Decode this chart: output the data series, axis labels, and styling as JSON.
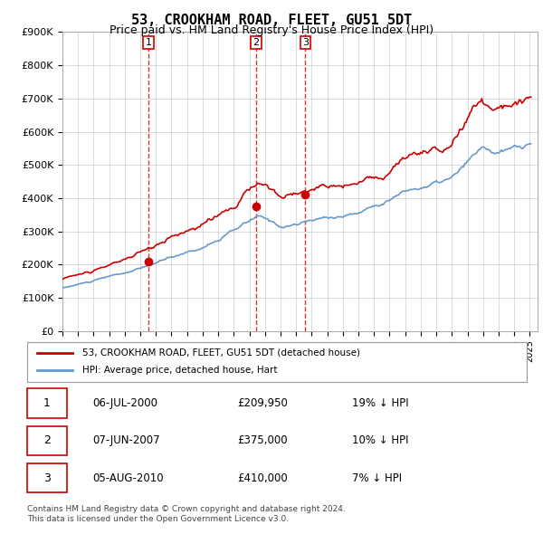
{
  "title": "53, CROOKHAM ROAD, FLEET, GU51 5DT",
  "subtitle": "Price paid vs. HM Land Registry's House Price Index (HPI)",
  "legend_house": "53, CROOKHAM ROAD, FLEET, GU51 5DT (detached house)",
  "legend_hpi": "HPI: Average price, detached house, Hart",
  "footer1": "Contains HM Land Registry data © Crown copyright and database right 2024.",
  "footer2": "This data is licensed under the Open Government Licence v3.0.",
  "transactions": [
    {
      "num": 1,
      "date": "06-JUL-2000",
      "price": 209950,
      "pct": "19%",
      "dir": "↓"
    },
    {
      "num": 2,
      "date": "07-JUN-2007",
      "price": 375000,
      "pct": "10%",
      "dir": "↓"
    },
    {
      "num": 3,
      "date": "05-AUG-2010",
      "price": 410000,
      "pct": "7%",
      "dir": "↓"
    }
  ],
  "transaction_years": [
    2000.52,
    2007.44,
    2010.59
  ],
  "transaction_prices": [
    209950,
    375000,
    410000
  ],
  "ylim": [
    0,
    900000
  ],
  "yticks": [
    0,
    100000,
    200000,
    300000,
    400000,
    500000,
    600000,
    700000,
    800000,
    900000
  ],
  "ytick_labels": [
    "£0",
    "£100K",
    "£200K",
    "£300K",
    "£400K",
    "£500K",
    "£600K",
    "£700K",
    "£800K",
    "£900K"
  ],
  "xlim_start": 1995,
  "xlim_end": 2025.5,
  "house_color": "#cc0000",
  "hpi_color": "#6699cc",
  "vline_color": "#cc0000",
  "background_color": "#ffffff",
  "grid_color": "#cccccc"
}
